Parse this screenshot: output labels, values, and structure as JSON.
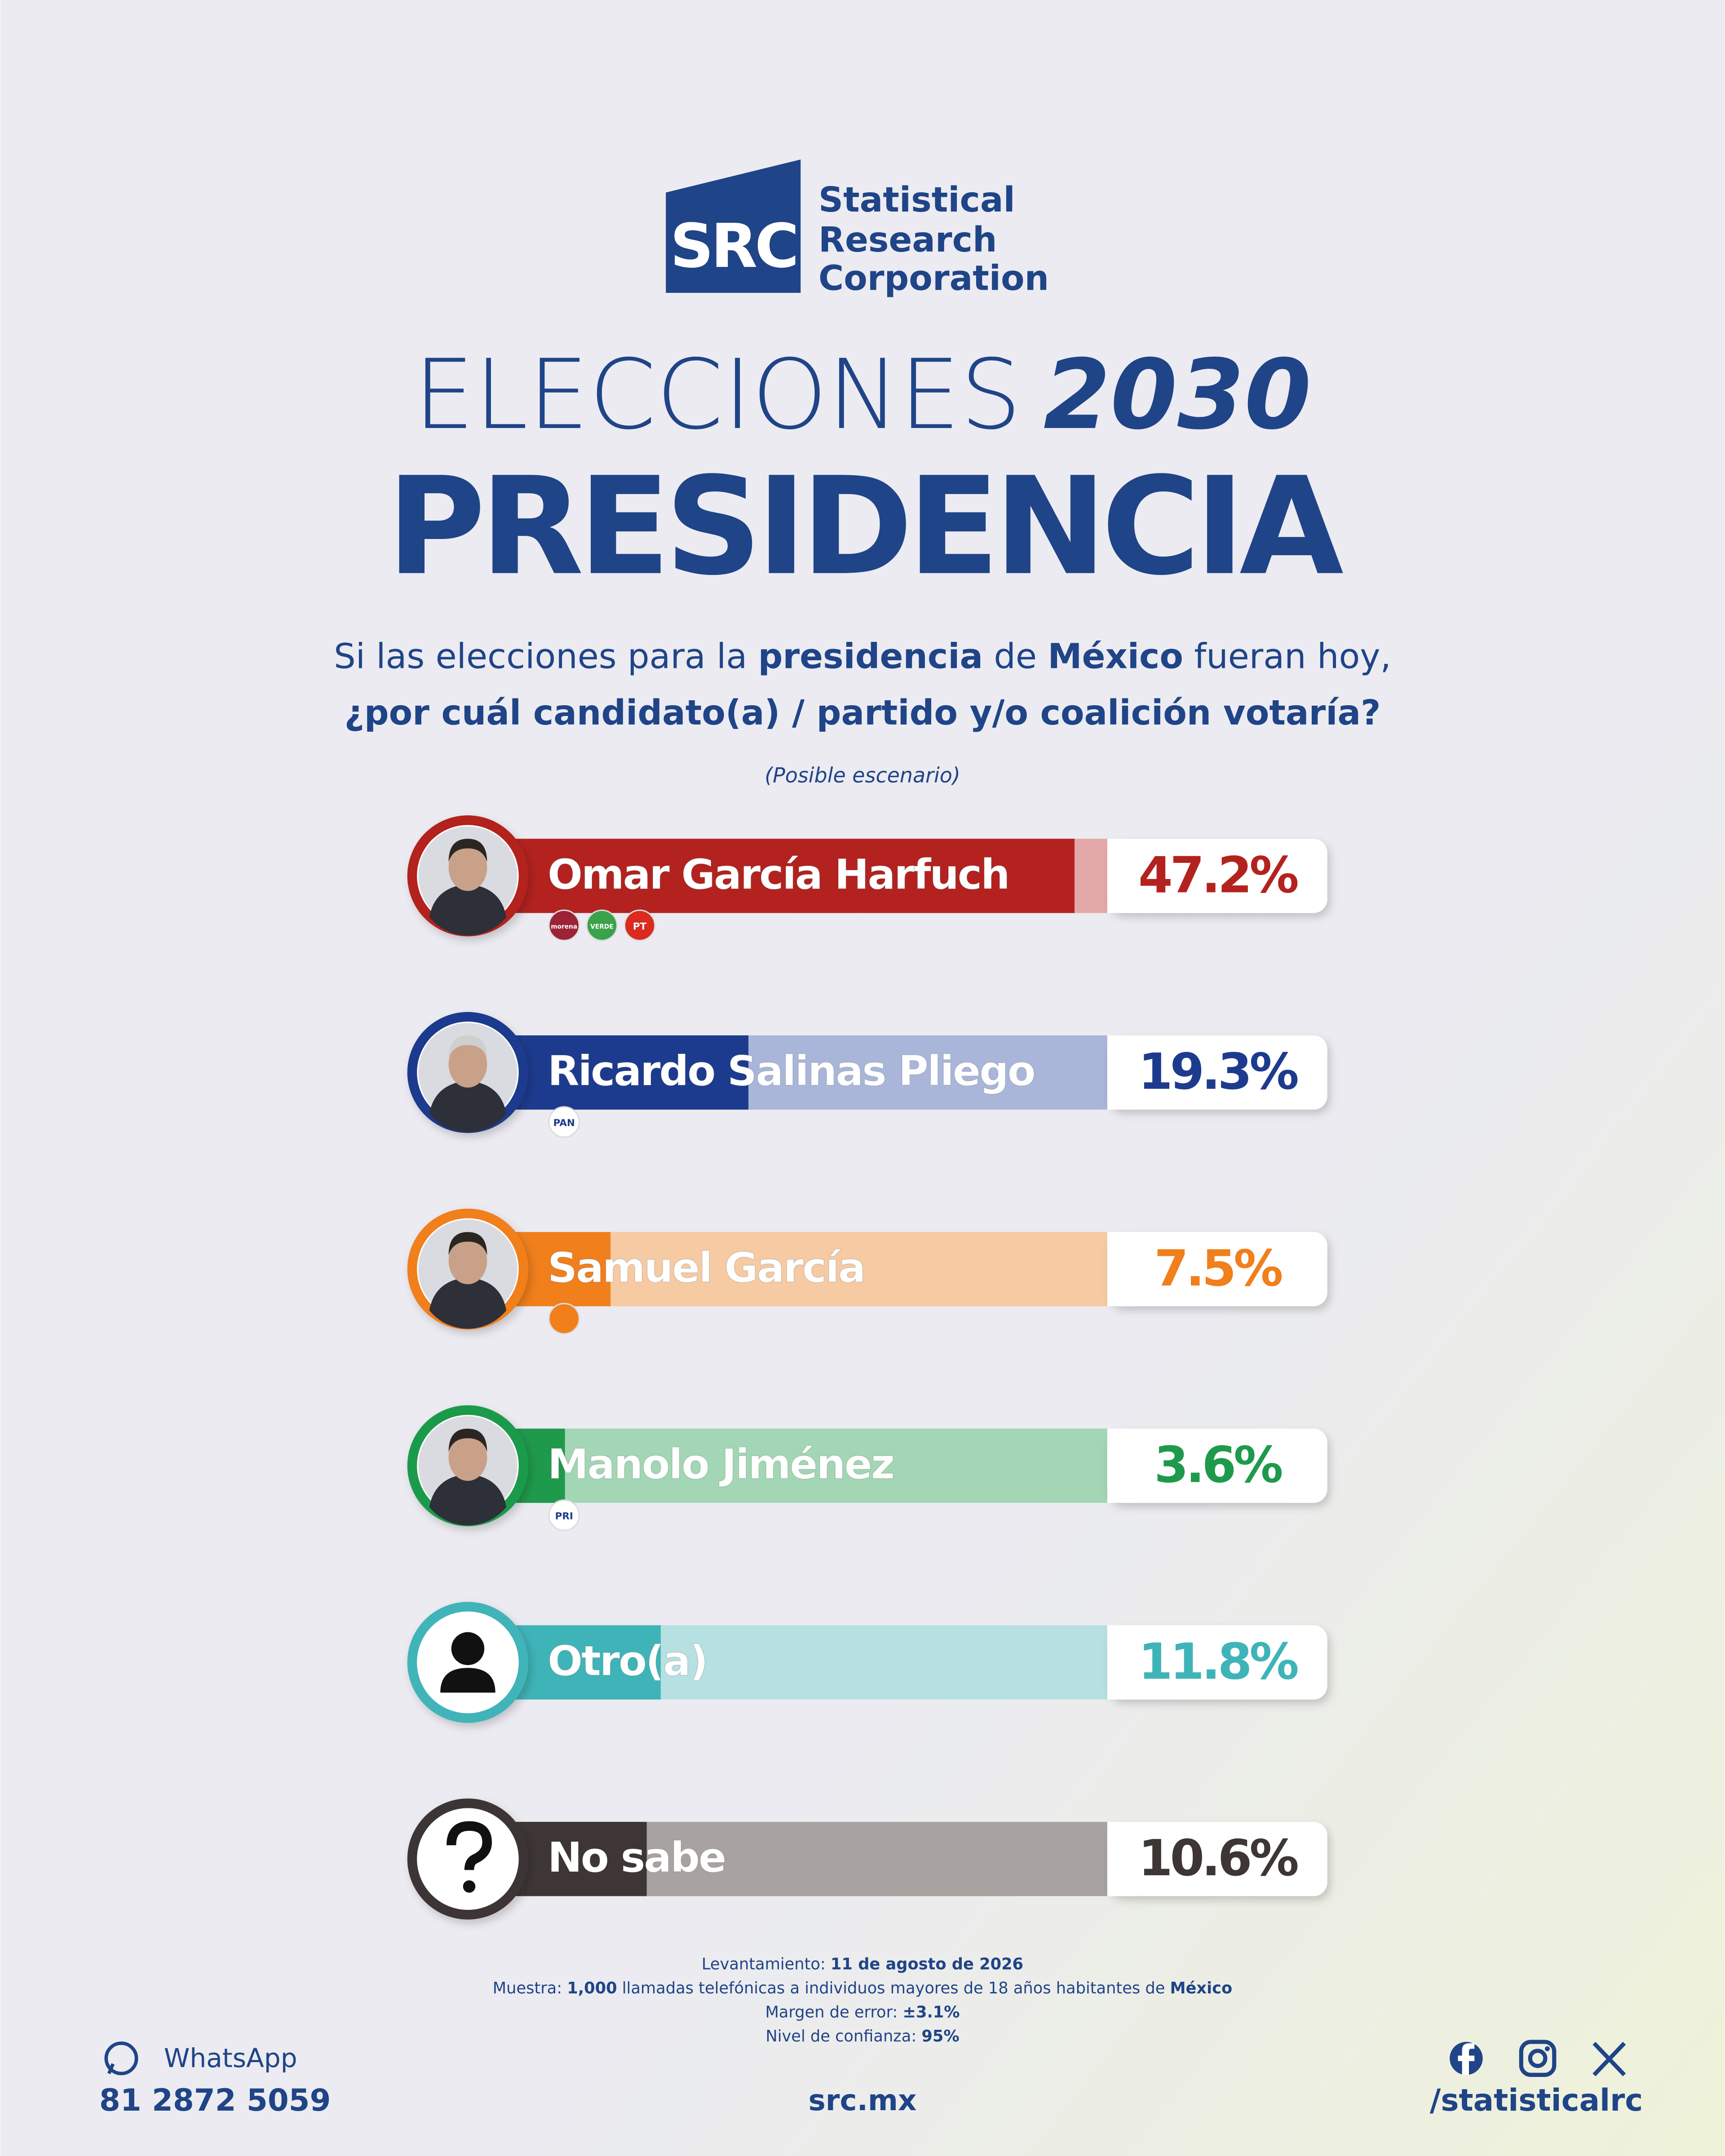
{
  "header": {
    "logo_text": "SRC",
    "brand": [
      "Statistical",
      "Research",
      "Corporation"
    ],
    "title_light": "ELECCIONES",
    "title_year": "2030",
    "title_main": "PRESIDENCIA",
    "question": [
      "Si las elecciones para la ",
      "presidencia",
      " de ",
      "México",
      " fueran hoy,"
    ],
    "question_bold": "¿por cuál candidato(a) / partido y/o coalición votaría?",
    "note": "(Posible escenario)"
  },
  "chart_data": {
    "type": "bar",
    "orientation": "horizontal",
    "xlim": [
      0,
      50
    ],
    "categories": [
      "Omar García Harfuch",
      "Ricardo Salinas Pliego",
      "Samuel García",
      "Manolo Jiménez",
      "Otro(a)",
      "No sabe"
    ],
    "values": [
      47.2,
      19.3,
      7.5,
      3.6,
      11.8,
      10.6
    ],
    "value_labels": [
      "47.2%",
      "19.3%",
      "7.5%",
      "3.6%",
      "11.8%",
      "10.6%"
    ],
    "colors": [
      "#b3221f",
      "#1d3b8e",
      "#f07f1c",
      "#1f9a4c",
      "#3fb4b8",
      "#3d3634"
    ],
    "track_colors": [
      "#e2a9a8",
      "#a9b6da",
      "#f6caa3",
      "#a2d6b4",
      "#b6e0e2",
      "#a8a3a1"
    ],
    "parties": [
      [
        {
          "label": "morena",
          "color": "#9b2335"
        },
        {
          "label": "VERDE",
          "color": "#3aa34a"
        },
        {
          "label": "PT",
          "color": "#d92b1e"
        }
      ],
      [
        {
          "label": "PAN",
          "color": "#ffffff"
        }
      ],
      [
        {
          "color": "#f07f1c"
        }
      ],
      [
        {
          "label": "PRI",
          "color": "#ffffff"
        }
      ],
      [],
      []
    ]
  },
  "footer": {
    "method": [
      [
        "Levantamiento: ",
        "11 de agosto de 2026"
      ],
      [
        "Muestra: ",
        "1,000",
        " llamadas telefónicas a individuos mayores de 18 años habitantes de ",
        "México"
      ],
      [
        "Margen de error: ",
        "±3.1%"
      ],
      [
        "Nivel de confianza: ",
        "95%"
      ]
    ],
    "whatsapp_label": "WhatsApp",
    "phone": "81 2872 5059",
    "site": "src.mx",
    "handle": "/statisticalrc"
  }
}
